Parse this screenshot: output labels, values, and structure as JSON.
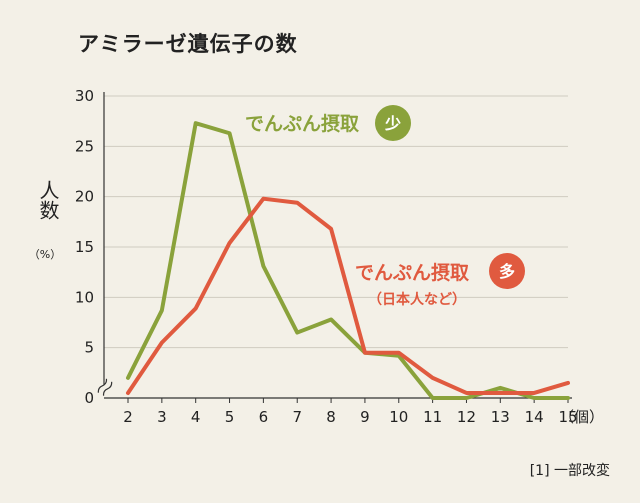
{
  "chart_data": {
    "type": "line",
    "title": "アミラーゼ遺伝子の数",
    "ylabel": "人数",
    "yunit": "（%）",
    "xunit": "（個）",
    "x": [
      2,
      3,
      4,
      5,
      6,
      7,
      8,
      9,
      10,
      11,
      12,
      13,
      14,
      15
    ],
    "xlim": [
      2,
      15
    ],
    "ylim": [
      0,
      30
    ],
    "yticks": [
      0,
      5,
      10,
      15,
      20,
      25,
      30
    ],
    "grid": true,
    "series": [
      {
        "name": "でんぷん摂取",
        "badge": "少",
        "color": "#8aa23b",
        "values": [
          2,
          8.7,
          27.3,
          26.3,
          13.1,
          6.5,
          7.8,
          4.5,
          4.2,
          0,
          0,
          1.0,
          0,
          0
        ]
      },
      {
        "name": "でんぷん摂取",
        "badge": "多",
        "sublabel": "（日本人など）",
        "color": "#e05a3f",
        "values": [
          0.5,
          5.5,
          8.9,
          15.4,
          19.8,
          19.4,
          16.8,
          4.5,
          4.5,
          2.0,
          0.5,
          0.5,
          0.5,
          1.5
        ]
      }
    ]
  },
  "axis_break_symbol": "≈",
  "source": "[1] 一部改変"
}
